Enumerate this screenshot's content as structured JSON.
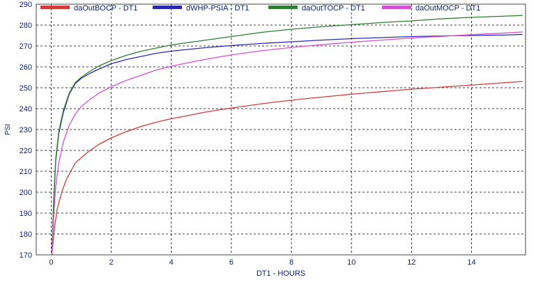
{
  "colors": {
    "background": "#ffffff",
    "grid": "#000000",
    "axis_text": "#0a1e6e"
  },
  "chart_data": {
    "type": "line",
    "title": "",
    "xlabel": "DT1 - HOURS",
    "ylabel": "PSI",
    "xlim": [
      -0.5,
      15.8
    ],
    "ylim": [
      170,
      290
    ],
    "xticks": [
      0,
      2,
      4,
      6,
      8,
      10,
      12,
      14
    ],
    "yticks": [
      170,
      180,
      190,
      200,
      210,
      220,
      230,
      240,
      250,
      260,
      270,
      280,
      290
    ],
    "grid": true,
    "legend_position": "top",
    "series": [
      {
        "name": "daOutBOCP - DT1",
        "color": "#d23b3b",
        "points": [
          [
            0.02,
            170
          ],
          [
            0.1,
            182
          ],
          [
            0.2,
            192
          ],
          [
            0.35,
            200
          ],
          [
            0.5,
            206
          ],
          [
            0.8,
            214
          ],
          [
            1.2,
            219
          ],
          [
            1.6,
            223
          ],
          [
            2,
            226
          ],
          [
            2.5,
            229
          ],
          [
            3,
            231.5
          ],
          [
            3.5,
            233.5
          ],
          [
            4,
            235.2
          ],
          [
            4.5,
            236.5
          ],
          [
            5,
            238
          ],
          [
            5.5,
            239.2
          ],
          [
            6,
            240.3
          ],
          [
            6.5,
            241.3
          ],
          [
            7,
            242.3
          ],
          [
            7.5,
            243.2
          ],
          [
            8,
            244
          ],
          [
            8.5,
            244.8
          ],
          [
            9,
            245.5
          ],
          [
            9.5,
            246.2
          ],
          [
            10,
            246.9
          ],
          [
            10.5,
            247.5
          ],
          [
            11,
            248.1
          ],
          [
            11.5,
            248.7
          ],
          [
            12,
            249.3
          ],
          [
            12.5,
            249.8
          ],
          [
            13,
            250.3
          ],
          [
            13.5,
            250.8
          ],
          [
            14,
            251.3
          ],
          [
            14.5,
            251.8
          ],
          [
            15,
            252.3
          ],
          [
            15.7,
            253
          ]
        ]
      },
      {
        "name": "dWHP-PSIA - DT1",
        "color": "#2a2ab0",
        "points": [
          [
            0.02,
            172
          ],
          [
            0.08,
            195
          ],
          [
            0.15,
            215
          ],
          [
            0.25,
            228
          ],
          [
            0.4,
            238
          ],
          [
            0.6,
            247
          ],
          [
            0.8,
            252
          ],
          [
            1,
            254.5
          ],
          [
            1.3,
            257
          ],
          [
            1.6,
            259
          ],
          [
            2,
            261.5
          ],
          [
            2.5,
            263.5
          ],
          [
            3,
            265
          ],
          [
            3.5,
            266.5
          ],
          [
            4,
            267.5
          ],
          [
            5,
            269
          ],
          [
            6,
            270.2
          ],
          [
            7,
            271.2
          ],
          [
            8,
            272
          ],
          [
            9,
            272.8
          ],
          [
            10,
            273.5
          ],
          [
            11,
            274
          ],
          [
            12,
            274.5
          ],
          [
            13,
            274.8
          ],
          [
            14,
            275
          ],
          [
            15,
            275.2
          ],
          [
            15.7,
            275.5
          ]
        ]
      },
      {
        "name": "daOutTOCP - DT1",
        "color": "#2e7d32",
        "points": [
          [
            0.02,
            172
          ],
          [
            0.08,
            196
          ],
          [
            0.15,
            216
          ],
          [
            0.25,
            229
          ],
          [
            0.4,
            239
          ],
          [
            0.6,
            247.5
          ],
          [
            0.8,
            252.5
          ],
          [
            1,
            255
          ],
          [
            1.3,
            258
          ],
          [
            1.6,
            260.5
          ],
          [
            2,
            263
          ],
          [
            2.5,
            265.5
          ],
          [
            3,
            267.5
          ],
          [
            3.5,
            269
          ],
          [
            4,
            270.5
          ],
          [
            5,
            272.5
          ],
          [
            6,
            274.5
          ],
          [
            7,
            276.5
          ],
          [
            8,
            278
          ],
          [
            9,
            279.2
          ],
          [
            10,
            280.2
          ],
          [
            11,
            281.2
          ],
          [
            12,
            282
          ],
          [
            13,
            283
          ],
          [
            14,
            283.7
          ],
          [
            15,
            284.2
          ],
          [
            15.7,
            284.6
          ]
        ]
      },
      {
        "name": "daOutMOCP - DT1",
        "color": "#d44fd4",
        "points": [
          [
            0.02,
            171
          ],
          [
            0.08,
            188
          ],
          [
            0.15,
            203
          ],
          [
            0.25,
            214
          ],
          [
            0.4,
            224
          ],
          [
            0.6,
            232
          ],
          [
            0.8,
            237.5
          ],
          [
            1,
            241
          ],
          [
            1.3,
            244.5
          ],
          [
            1.6,
            247.5
          ],
          [
            2,
            250.5
          ],
          [
            2.5,
            253.5
          ],
          [
            3,
            256
          ],
          [
            3.5,
            258.5
          ],
          [
            4,
            260.3
          ],
          [
            4.5,
            261.8
          ],
          [
            5,
            263.2
          ],
          [
            5.5,
            264.5
          ],
          [
            6,
            265.7
          ],
          [
            7,
            267.7
          ],
          [
            8,
            269.3
          ],
          [
            9,
            270.6
          ],
          [
            10,
            271.8
          ],
          [
            11,
            272.8
          ],
          [
            12,
            273.8
          ],
          [
            13,
            274.6
          ],
          [
            14,
            275.4
          ],
          [
            15,
            276.1
          ],
          [
            15.7,
            276.7
          ]
        ]
      }
    ]
  }
}
